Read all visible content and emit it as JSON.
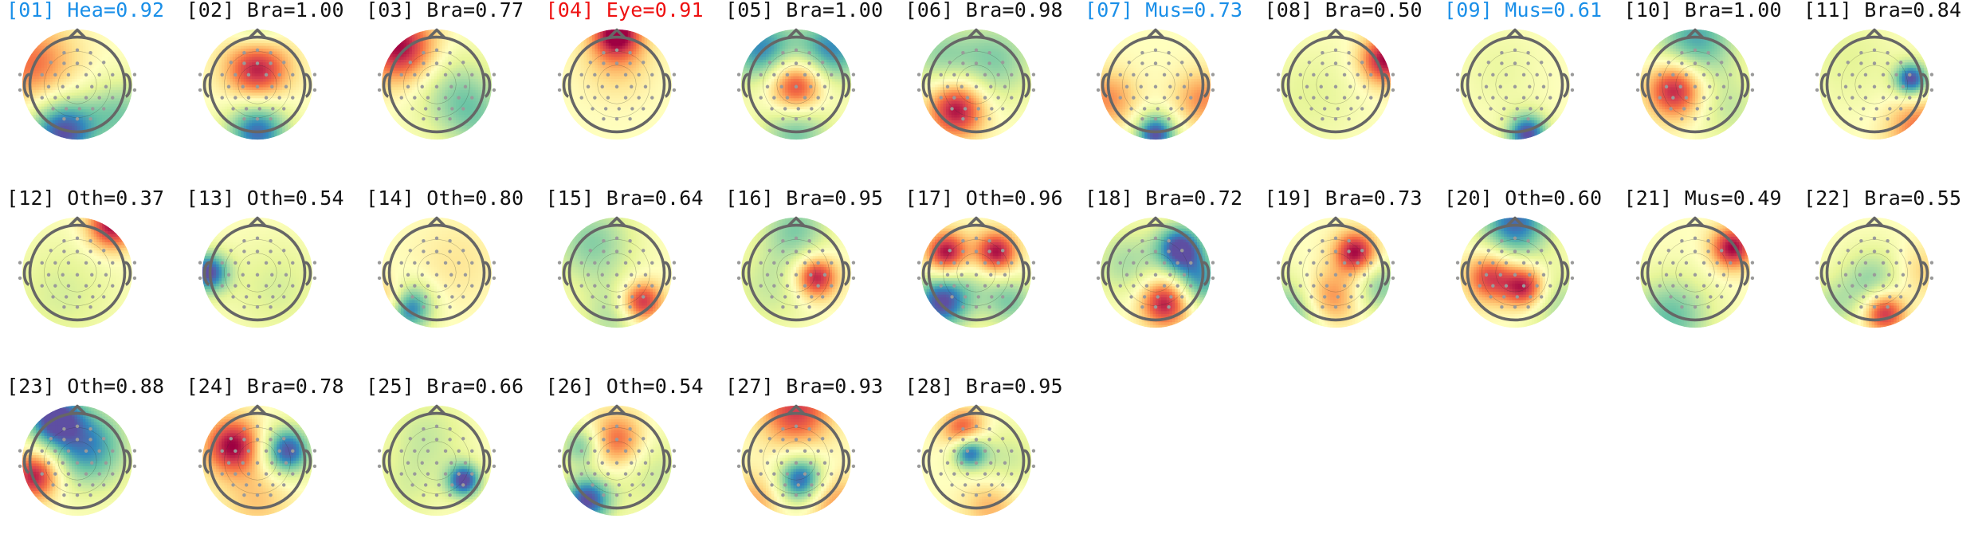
{
  "colors": {
    "default_label": "#111111",
    "muscle_label": "#1a8fe8",
    "heartbeat_label": "#1a8fe8",
    "eye_label": "#ee1111",
    "colormap": [
      "#5e4fa2",
      "#3288bd",
      "#66c2a5",
      "#abdda4",
      "#e6f598",
      "#ffffbf",
      "#fee08b",
      "#fdae61",
      "#f46d43",
      "#d53e4f",
      "#9e0142"
    ],
    "head_outline": "#666666",
    "sensor": "#9a9a9a",
    "contour": "#333333"
  },
  "components": [
    {
      "label": "[01] Hea=0.92",
      "category": "Hea",
      "score": 0.92,
      "highlight": "heartbeat"
    },
    {
      "label": "[02] Bra=1.00",
      "category": "Bra",
      "score": 1.0,
      "highlight": "none"
    },
    {
      "label": "[03] Bra=0.77",
      "category": "Bra",
      "score": 0.77,
      "highlight": "none"
    },
    {
      "label": "[04] Eye=0.91",
      "category": "Eye",
      "score": 0.91,
      "highlight": "eye"
    },
    {
      "label": "[05] Bra=1.00",
      "category": "Bra",
      "score": 1.0,
      "highlight": "none"
    },
    {
      "label": "[06] Bra=0.98",
      "category": "Bra",
      "score": 0.98,
      "highlight": "none"
    },
    {
      "label": "[07] Mus=0.73",
      "category": "Mus",
      "score": 0.73,
      "highlight": "muscle"
    },
    {
      "label": "[08] Bra=0.50",
      "category": "Bra",
      "score": 0.5,
      "highlight": "none"
    },
    {
      "label": "[09] Mus=0.61",
      "category": "Mus",
      "score": 0.61,
      "highlight": "muscle"
    },
    {
      "label": "[10] Bra=1.00",
      "category": "Bra",
      "score": 1.0,
      "highlight": "none"
    },
    {
      "label": "[11] Bra=0.84",
      "category": "Bra",
      "score": 0.84,
      "highlight": "none"
    },
    {
      "label": "[12] Oth=0.37",
      "category": "Oth",
      "score": 0.37,
      "highlight": "none"
    },
    {
      "label": "[13] Oth=0.54",
      "category": "Oth",
      "score": 0.54,
      "highlight": "none"
    },
    {
      "label": "[14] Oth=0.80",
      "category": "Oth",
      "score": 0.8,
      "highlight": "none"
    },
    {
      "label": "[15] Bra=0.64",
      "category": "Bra",
      "score": 0.64,
      "highlight": "none"
    },
    {
      "label": "[16] Bra=0.95",
      "category": "Bra",
      "score": 0.95,
      "highlight": "none"
    },
    {
      "label": "[17] Oth=0.96",
      "category": "Oth",
      "score": 0.96,
      "highlight": "none"
    },
    {
      "label": "[18] Bra=0.72",
      "category": "Bra",
      "score": 0.72,
      "highlight": "none"
    },
    {
      "label": "[19] Bra=0.73",
      "category": "Bra",
      "score": 0.73,
      "highlight": "none"
    },
    {
      "label": "[20] Oth=0.60",
      "category": "Oth",
      "score": 0.6,
      "highlight": "none"
    },
    {
      "label": "[21] Mus=0.49",
      "category": "Mus",
      "score": 0.49,
      "highlight": "none"
    },
    {
      "label": "[22] Bra=0.55",
      "category": "Bra",
      "score": 0.55,
      "highlight": "none"
    },
    {
      "label": "[23] Oth=0.88",
      "category": "Oth",
      "score": 0.88,
      "highlight": "none"
    },
    {
      "label": "[24] Bra=0.78",
      "category": "Bra",
      "score": 0.78,
      "highlight": "none"
    },
    {
      "label": "[25] Bra=0.66",
      "category": "Bra",
      "score": 0.66,
      "highlight": "none"
    },
    {
      "label": "[26] Oth=0.54",
      "category": "Oth",
      "score": 0.54,
      "highlight": "none"
    },
    {
      "label": "[27] Bra=0.93",
      "category": "Bra",
      "score": 0.93,
      "highlight": "none"
    },
    {
      "label": "[28] Bra=0.95",
      "category": "Bra",
      "score": 0.95,
      "highlight": "none"
    }
  ]
}
